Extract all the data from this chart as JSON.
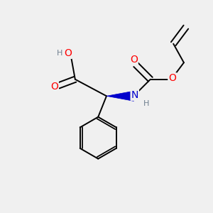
{
  "bg_color": "#f0f0f0",
  "atom_colors": {
    "C": "#000000",
    "O": "#ff0000",
    "N": "#0000cc",
    "H": "#708090"
  },
  "bond_color": "#000000",
  "bond_width": 1.4,
  "figsize": [
    3.0,
    3.0
  ],
  "dpi": 100,
  "xlim": [
    0,
    10
  ],
  "ylim": [
    0,
    10
  ]
}
